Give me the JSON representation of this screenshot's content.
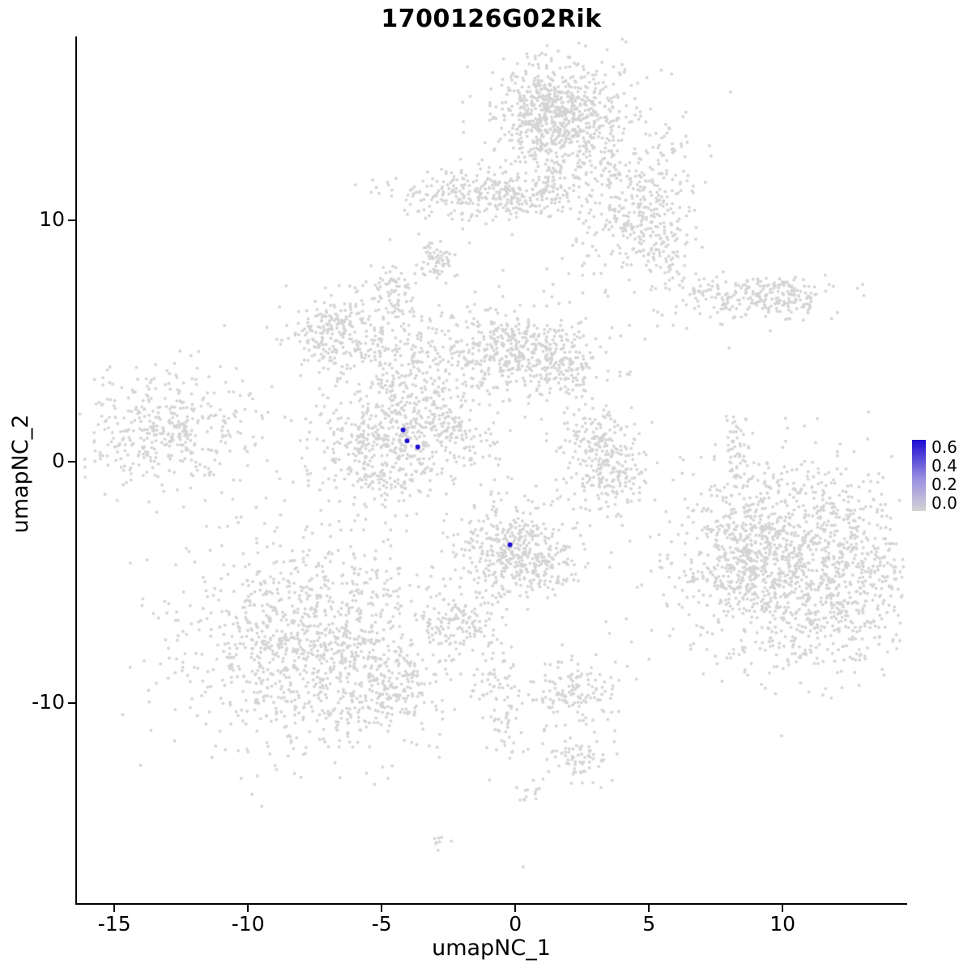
{
  "chart_data": {
    "type": "scatter",
    "title": "1700126G02Rik",
    "xlabel": "umapNC_1",
    "ylabel": "umapNC_2",
    "xlim": [
      -16.4,
      14.6
    ],
    "ylim": [
      -18.3,
      17.6
    ],
    "grid": false,
    "x_ticks": {
      "values": [
        -15,
        -10,
        -5,
        0,
        5,
        10
      ],
      "labels": [
        "-15",
        "-10",
        "-5",
        "0",
        "5",
        "10"
      ]
    },
    "y_ticks": {
      "values": [
        -10,
        0,
        10
      ],
      "labels": [
        "-10",
        "0",
        "10"
      ]
    },
    "point_color": "#d4d4d4",
    "highlight_color": "#1c0bd2",
    "background_color": "#ffffff",
    "legend": {
      "position": "right",
      "labels": [
        "0.6",
        "0.4",
        "0.2",
        "0.0"
      ],
      "top_color": "#1c0bd2",
      "mid_color": "#9a90e0",
      "bottom_color": "#d4d4d4",
      "min_value": 0.0,
      "max_value": 0.6
    },
    "clusters": [
      {
        "cx": 1.9,
        "cy": 13.9,
        "sx": 1.35,
        "sy": 1.5,
        "n": 650
      },
      {
        "cx": 1.2,
        "cy": 14.6,
        "sx": 0.8,
        "sy": 0.9,
        "n": 250
      },
      {
        "cx": 4.6,
        "cy": 10.8,
        "sx": 0.9,
        "sy": 1.7,
        "n": 260,
        "rot": -0.5
      },
      {
        "cx": 5.4,
        "cy": 9.2,
        "sx": 0.8,
        "sy": 0.8,
        "n": 120
      },
      {
        "cx": -1.8,
        "cy": 11.1,
        "sx": 1.5,
        "sy": 0.5,
        "n": 230
      },
      {
        "cx": 0.6,
        "cy": 11.0,
        "sx": 0.8,
        "sy": 0.45,
        "n": 90
      },
      {
        "cx": -2.9,
        "cy": 8.4,
        "sx": 0.35,
        "sy": 0.5,
        "n": 45
      },
      {
        "cx": -4.5,
        "cy": 7.1,
        "sx": 0.4,
        "sy": 0.55,
        "n": 60
      },
      {
        "cx": 8.5,
        "cy": 6.8,
        "sx": 1.7,
        "sy": 0.5,
        "n": 200
      },
      {
        "cx": 10.0,
        "cy": 6.9,
        "sx": 0.6,
        "sy": 0.45,
        "n": 80
      },
      {
        "cx": -6.6,
        "cy": 5.2,
        "sx": 1.05,
        "sy": 0.95,
        "n": 260
      },
      {
        "cx": -3.6,
        "cy": 3.6,
        "sx": 0.9,
        "sy": 1.4,
        "n": 230,
        "rot": 0.35
      },
      {
        "cx": -0.7,
        "cy": 4.7,
        "sx": 1.2,
        "sy": 0.95,
        "n": 320
      },
      {
        "cx": 1.6,
        "cy": 4.1,
        "sx": 1.0,
        "sy": 0.8,
        "n": 240
      },
      {
        "cx": -4.9,
        "cy": 0.7,
        "sx": 1.35,
        "sy": 1.25,
        "n": 520
      },
      {
        "cx": -2.0,
        "cy": 1.0,
        "sx": 0.9,
        "sy": 0.5,
        "n": 70,
        "rot": -0.6
      },
      {
        "cx": -13.0,
        "cy": 1.3,
        "sx": 1.6,
        "sy": 1.2,
        "n": 420
      },
      {
        "cx": 3.1,
        "cy": 0.9,
        "sx": 0.75,
        "sy": 0.8,
        "n": 130
      },
      {
        "cx": 3.6,
        "cy": -0.6,
        "sx": 0.8,
        "sy": 0.8,
        "n": 150
      },
      {
        "cx": 8.3,
        "cy": 0.3,
        "sx": 0.35,
        "sy": 0.9,
        "n": 60
      },
      {
        "cx": -0.2,
        "cy": -3.6,
        "sx": 1.15,
        "sy": 1.05,
        "n": 380
      },
      {
        "cx": 0.9,
        "cy": -4.4,
        "sx": 0.6,
        "sy": 0.55,
        "n": 90
      },
      {
        "cx": 10.7,
        "cy": -4.4,
        "sx": 2.3,
        "sy": 2.1,
        "n": 1500
      },
      {
        "cx": 8.6,
        "cy": -3.9,
        "sx": 0.8,
        "sy": 1.1,
        "n": 150
      },
      {
        "cx": -7.6,
        "cy": -7.6,
        "sx": 2.5,
        "sy": 2.2,
        "n": 1150
      },
      {
        "cx": -4.6,
        "cy": -9.4,
        "sx": 1.0,
        "sy": 0.8,
        "n": 150
      },
      {
        "cx": -2.2,
        "cy": -6.7,
        "sx": 0.8,
        "sy": 0.6,
        "n": 120
      },
      {
        "cx": -0.8,
        "cy": -9.0,
        "sx": 0.5,
        "sy": 0.9,
        "n": 55
      },
      {
        "cx": 2.1,
        "cy": -9.6,
        "sx": 0.8,
        "sy": 0.75,
        "n": 140
      },
      {
        "cx": -0.3,
        "cy": -11.3,
        "sx": 0.4,
        "sy": 0.8,
        "n": 40
      },
      {
        "cx": 2.4,
        "cy": -12.3,
        "sx": 0.6,
        "sy": 0.55,
        "n": 70
      },
      {
        "cx": 0.6,
        "cy": -13.8,
        "sx": 0.3,
        "sy": 0.35,
        "n": 14
      },
      {
        "cx": -2.8,
        "cy": -15.8,
        "sx": 0.25,
        "sy": 0.25,
        "n": 8
      },
      {
        "cx": -3.0,
        "cy": 7.9,
        "sx": 0.3,
        "sy": 0.3,
        "n": 20
      }
    ],
    "singles": [
      [
        5.1,
        -7.0
      ],
      [
        3.45,
        -2.3
      ],
      [
        4.2,
        -1.7
      ],
      [
        8.0,
        4.7
      ],
      [
        -8.3,
        -11.9
      ],
      [
        -8.5,
        -12.2
      ],
      [
        0.3,
        -16.8
      ],
      [
        5.0,
        -8.2
      ],
      [
        -3.2,
        5.9
      ],
      [
        2.9,
        2.2
      ]
    ],
    "highlighted_points": [
      {
        "x": -4.2,
        "y": 1.3,
        "value": 0.6
      },
      {
        "x": -4.05,
        "y": 0.85,
        "value": 0.55
      },
      {
        "x": -3.65,
        "y": 0.6,
        "value": 0.6
      },
      {
        "x": -0.2,
        "y": -3.45,
        "value": 0.65
      }
    ]
  }
}
